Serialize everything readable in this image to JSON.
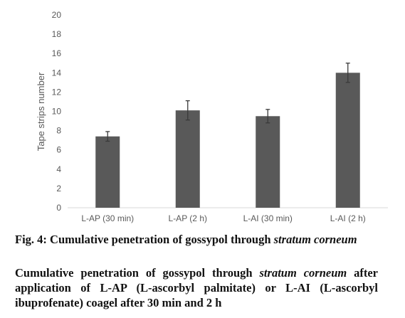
{
  "chart_data": {
    "type": "bar",
    "categories": [
      "L-AP (30 min)",
      "L-AP (2 h)",
      "L-AI (30 min)",
      "L-AI (2 h)"
    ],
    "values": [
      7.4,
      10.1,
      9.5,
      14.0
    ],
    "errors": [
      0.5,
      1.0,
      0.7,
      1.0
    ],
    "xlabel": "",
    "ylabel": "Tape strips number",
    "ylim": [
      0,
      20
    ],
    "yticks": [
      0,
      2,
      4,
      6,
      8,
      10,
      12,
      14,
      16,
      18,
      20
    ],
    "grid": false,
    "legend": "none",
    "bar_color": "#595959",
    "axis_color": "#d9d9d9",
    "text_color": "#595959"
  },
  "caption": {
    "title_prefix": "Fig. 4: Cumulative penetration of gossypol through ",
    "title_italic": "stratum corneum",
    "desc_prefix": "Cumulative penetration of gossypol through ",
    "desc_italic": "stratum corneum",
    "desc_suffix": " after application of L-AP (L-ascorbyl palmitate) or L-AI (L-ascorbyl ibuprofenate) coagel after 30 min and 2 h"
  }
}
